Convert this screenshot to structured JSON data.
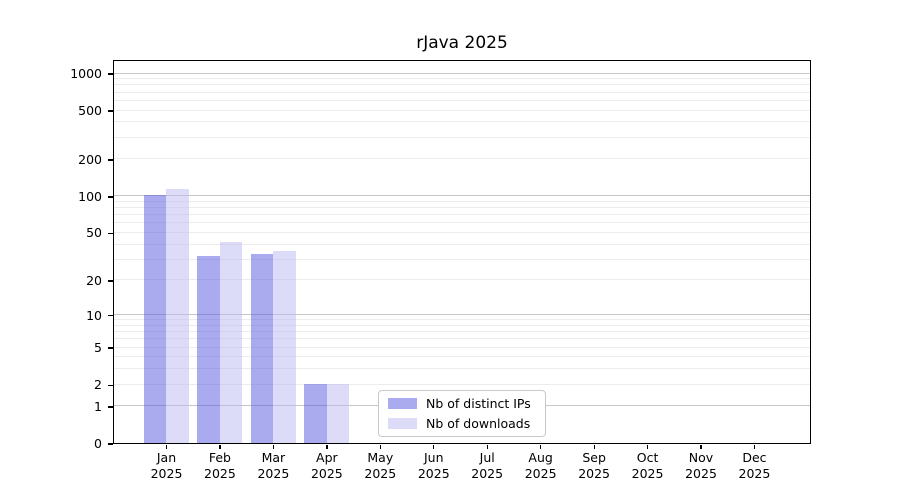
{
  "chart_data": {
    "type": "bar",
    "title": "rJava 2025",
    "x_year": "2025",
    "x_months": [
      "Jan",
      "Feb",
      "Mar",
      "Apr",
      "May",
      "Jun",
      "Jul",
      "Aug",
      "Sep",
      "Oct",
      "Nov",
      "Dec"
    ],
    "categories": [
      "Jan 2025",
      "Feb 2025",
      "Mar 2025",
      "Apr 2025",
      "May 2025",
      "Jun 2025",
      "Jul 2025",
      "Aug 2025",
      "Sep 2025",
      "Oct 2025",
      "Nov 2025",
      "Dec 2025"
    ],
    "series": [
      {
        "name": "Nb of distinct IPs",
        "fill": "rgba(85,85,221,0.5)",
        "apparent_color": "#aaaaee",
        "values": [
          101,
          32,
          33,
          2,
          0,
          0,
          0,
          0,
          0,
          0,
          0,
          0
        ]
      },
      {
        "name": "Nb of downloads",
        "fill": "rgba(185,185,241,0.5)",
        "apparent_color": "#dcdcf8",
        "values": [
          114,
          42,
          35,
          2,
          0,
          0,
          0,
          0,
          0,
          0,
          0,
          0
        ]
      }
    ],
    "y_axis": {
      "scale": "log10(1+x)",
      "tick_values": [
        0,
        1,
        2,
        5,
        10,
        20,
        50,
        100,
        200,
        500,
        1000
      ],
      "major_gridlines": [
        1,
        10,
        100,
        1000
      ],
      "minor_gridlines": [
        2,
        3,
        4,
        5,
        6,
        7,
        8,
        9,
        20,
        30,
        40,
        50,
        60,
        70,
        80,
        90,
        200,
        300,
        400,
        500,
        600,
        700,
        800,
        900
      ],
      "ylim": [
        0,
        1250
      ]
    },
    "legend": {
      "entries": [
        "Nb of distinct IPs",
        "Nb of downloads"
      ],
      "location": "lower-center inside plot"
    },
    "grid": true
  },
  "colors": {
    "major_grid": "#c6c6c6",
    "minor_grid": "#ececec",
    "axis": "#000000",
    "legend_border": "#c9c9c9",
    "background": "#ffffff",
    "text": "#000000"
  }
}
